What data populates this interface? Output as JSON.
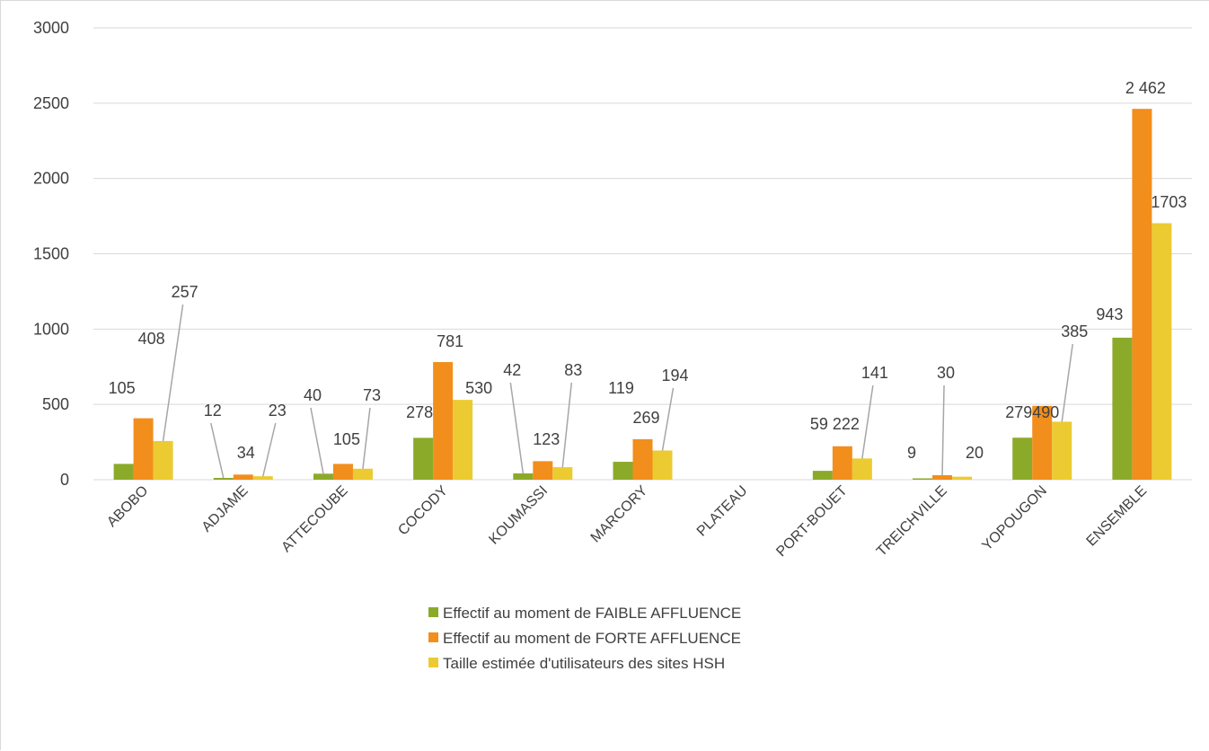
{
  "chart_data": {
    "type": "bar",
    "categories": [
      "ABOBO",
      "ADJAME",
      "ATTECOUBE",
      "COCODY",
      "KOUMASSI",
      "MARCORY",
      "PLATEAU",
      "PORT-BOUET",
      "TREICHVILLE",
      "YOPOUGON",
      "ENSEMBLE"
    ],
    "series": [
      {
        "name": "Effectif au moment de FAIBLE AFFLUENCE",
        "color": "#8CAA2A",
        "values": [
          105,
          12,
          40,
          278,
          42,
          119,
          0,
          59,
          9,
          279,
          943
        ],
        "labels": [
          "105",
          "12",
          "40",
          "278",
          "42",
          "119",
          "",
          "59",
          "9",
          "279",
          "943"
        ]
      },
      {
        "name": "Effectif au moment de FORTE AFFLUENCE",
        "color": "#F28E1C",
        "values": [
          408,
          34,
          105,
          781,
          123,
          269,
          0,
          222,
          30,
          490,
          2462
        ],
        "labels": [
          "408",
          "34",
          "105",
          "781",
          "123",
          "269",
          "",
          "222",
          "30",
          "490",
          "2 462"
        ]
      },
      {
        "name": "Taille estimée d'utilisateurs des sites HSH",
        "color": "#EBCB31",
        "values": [
          257,
          23,
          73,
          530,
          83,
          194,
          0,
          141,
          20,
          385,
          1703
        ],
        "labels": [
          "257",
          "23",
          "73",
          "530",
          "83",
          "194",
          "",
          "141",
          "20",
          "385",
          "1703"
        ]
      }
    ],
    "ylim": [
      0,
      3000
    ],
    "yticks": [
      "0",
      "500",
      "1000",
      "1500",
      "2000",
      "2500",
      "3000"
    ],
    "grid": true,
    "legend_position": "bottom"
  }
}
